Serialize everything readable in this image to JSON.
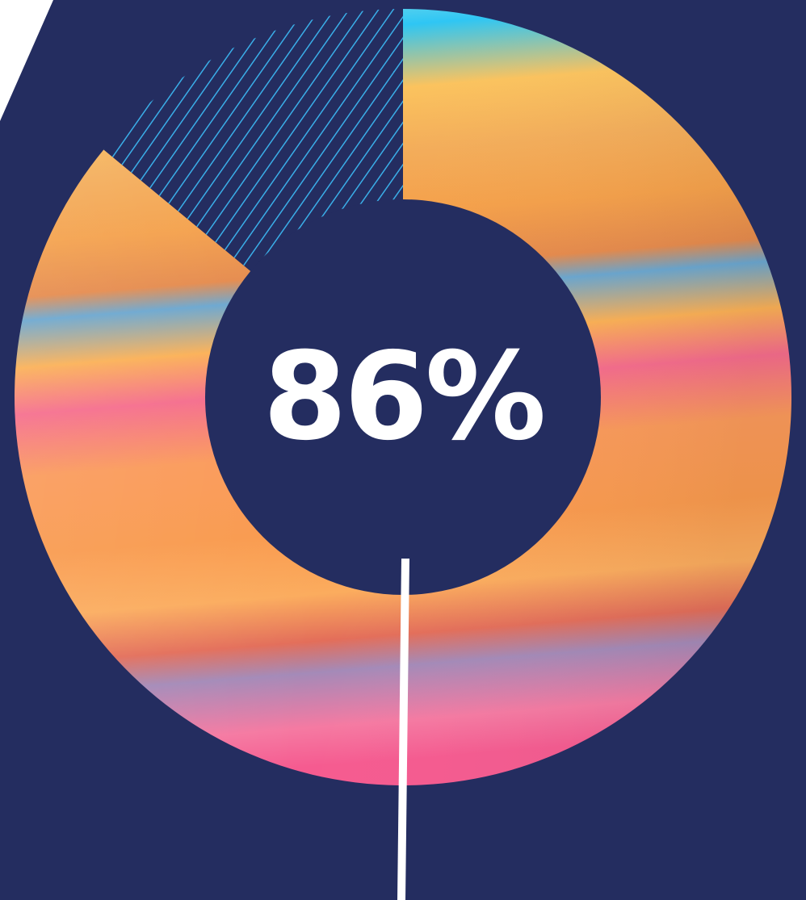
{
  "chart_data": {
    "type": "pie",
    "style": "donut",
    "slices": [
      {
        "value": 86,
        "style": "gradient"
      },
      {
        "value": 14,
        "style": "hatched"
      }
    ],
    "center_label": "86%",
    "colors": {
      "background": "#242d60",
      "gradient_top": "#8fe0e6",
      "gradient_sky": "#2ec6f4",
      "gradient_orange": "#f9a84a",
      "gradient_blue": "#6aa6cf",
      "gradient_pink": "#f66b96",
      "gradient_purple": "#a48ab8",
      "hatch_line": "#3aaee8",
      "leader_line": "#ffffff",
      "label_text": "#ffffff"
    }
  }
}
